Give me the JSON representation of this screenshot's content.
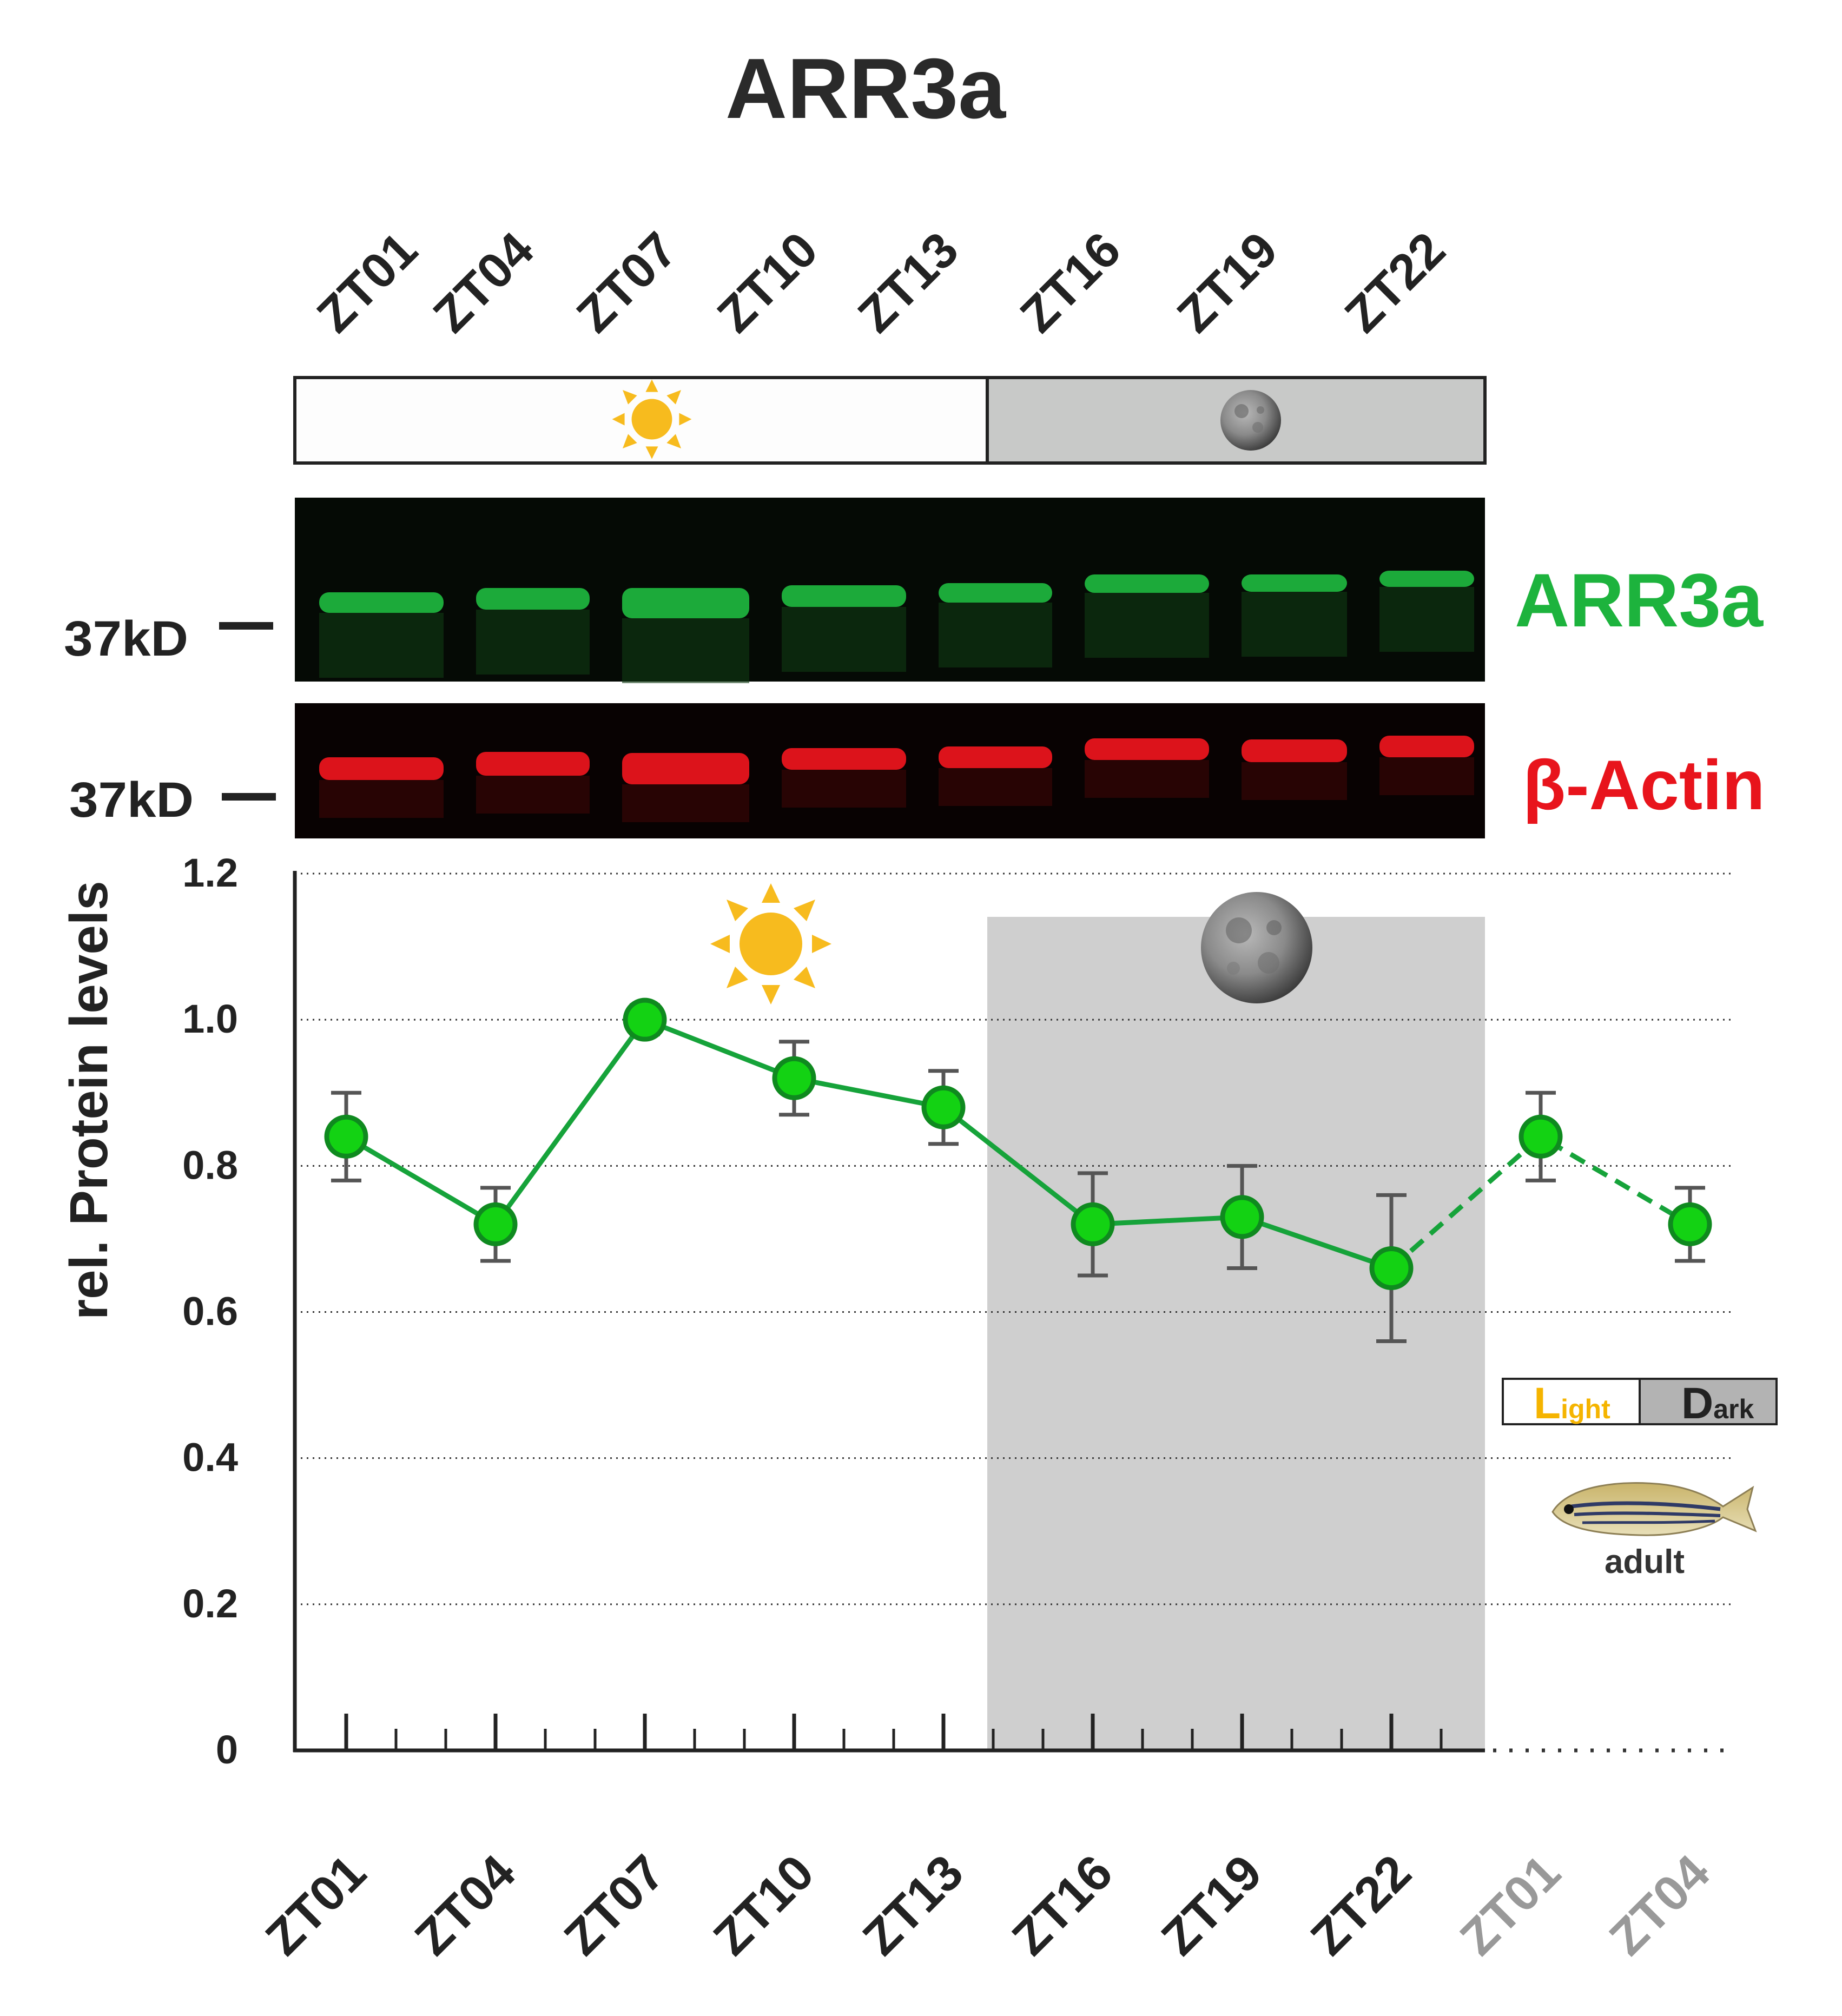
{
  "title": "ARR3a",
  "lanes": [
    "ZT01",
    "ZT04",
    "ZT07",
    "ZT10",
    "ZT13",
    "ZT16",
    "ZT19",
    "ZT22"
  ],
  "blot": {
    "marker_label": "37kD",
    "bands": [
      {
        "name": "ARR3a",
        "color": "#1db33d"
      },
      {
        "name": "β-Actin",
        "color": "#e8141c"
      }
    ]
  },
  "legend": {
    "light_big": "L",
    "light_small": "ight",
    "dark_big": "D",
    "dark_small": "ark",
    "light_color": "#f5b400"
  },
  "fish_label": "adult",
  "colors": {
    "line": "#16a33a",
    "marker": "#13d213",
    "marker_edge": "#0f8a1f",
    "dark_period": "#cfcfcf",
    "error_bar": "#555555",
    "axis": "#222222",
    "extra_tick_label": "#999999"
  },
  "chart_data": {
    "type": "line",
    "ylabel": "rel. Protein levels",
    "ylim": [
      0,
      1.2
    ],
    "yticks": [
      "0",
      "0.2",
      "0.4",
      "0.6",
      "0.8",
      "1.0",
      "1.2"
    ],
    "categories": [
      "ZT01",
      "ZT04",
      "ZT07",
      "ZT10",
      "ZT13",
      "ZT16",
      "ZT19",
      "ZT22",
      "ZT01",
      "ZT04"
    ],
    "dark_period": [
      "ZT16",
      "ZT22"
    ],
    "grid": "dotted horizontal",
    "series": [
      {
        "values": [
          0.84,
          0.72,
          1.0,
          0.92,
          0.88,
          0.72,
          0.73,
          0.66,
          0.84,
          0.72
        ],
        "errors": [
          0.06,
          0.05,
          0.02,
          0.05,
          0.05,
          0.07,
          0.07,
          0.1,
          0.06,
          0.05
        ],
        "repeated_from_index": 8
      }
    ]
  }
}
